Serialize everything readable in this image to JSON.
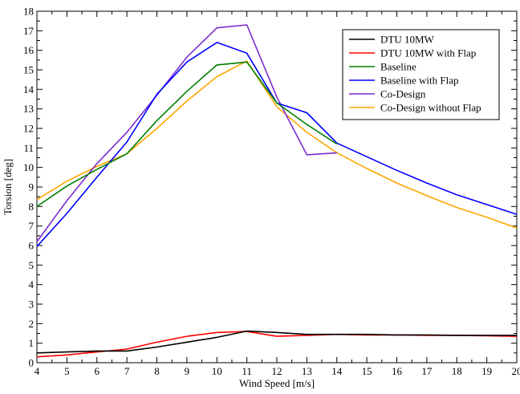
{
  "chart_data": {
    "type": "line",
    "xlabel": "Wind Speed [m/s]",
    "ylabel": "Torsion [deg]",
    "xlim": [
      4,
      20
    ],
    "ylim": [
      0,
      18
    ],
    "xticks": [
      4,
      5,
      6,
      7,
      8,
      9,
      10,
      11,
      12,
      13,
      14,
      15,
      16,
      17,
      18,
      19,
      20
    ],
    "yticks": [
      0,
      1,
      2,
      3,
      4,
      5,
      6,
      7,
      8,
      9,
      10,
      11,
      12,
      13,
      14,
      15,
      16,
      17,
      18
    ],
    "grid": false,
    "legend_position": "top-right",
    "series": [
      {
        "name": "DTU 10MW",
        "color": "#000000",
        "x": [
          4,
          5,
          6,
          7,
          8,
          9,
          10,
          11,
          12,
          13,
          14,
          15,
          16,
          17,
          18,
          19,
          20
        ],
        "y": [
          0.5,
          0.55,
          0.6,
          0.6,
          0.8,
          1.05,
          1.3,
          1.62,
          1.55,
          1.45,
          1.45,
          1.45,
          1.42,
          1.42,
          1.4,
          1.4,
          1.4
        ]
      },
      {
        "name": "DTU 10MW with Flap",
        "color": "#ff0000",
        "x": [
          4,
          5,
          6,
          7,
          8,
          9,
          10,
          11,
          12,
          13,
          14,
          15,
          16,
          17,
          18,
          19,
          20
        ],
        "y": [
          0.3,
          0.4,
          0.55,
          0.7,
          1.05,
          1.35,
          1.55,
          1.6,
          1.35,
          1.4,
          1.45,
          1.42,
          1.42,
          1.4,
          1.4,
          1.38,
          1.35
        ]
      },
      {
        "name": "Baseline",
        "color": "#008000",
        "x": [
          4,
          5,
          6,
          7,
          8,
          9,
          10,
          11,
          12,
          13,
          14
        ],
        "y": [
          8.0,
          9.05,
          9.9,
          10.7,
          12.4,
          13.9,
          15.25,
          15.4,
          13.3,
          12.2,
          11.2
        ]
      },
      {
        "name": "Baseline with Flap",
        "color": "#0000ff",
        "x": [
          4,
          5,
          6,
          7,
          8,
          9,
          10,
          11,
          12,
          13,
          14,
          15,
          16,
          17,
          18,
          19,
          20
        ],
        "y": [
          5.95,
          7.65,
          9.5,
          11.3,
          13.75,
          15.4,
          16.4,
          15.85,
          13.3,
          12.8,
          11.25,
          10.55,
          9.85,
          9.2,
          8.6,
          8.1,
          7.6
        ]
      },
      {
        "name": "Co-Design",
        "color": "#7b2ccf",
        "x": [
          4,
          5,
          6,
          7,
          8,
          9,
          10,
          11,
          12,
          13,
          14
        ],
        "y": [
          6.2,
          8.3,
          10.2,
          11.8,
          13.7,
          15.65,
          17.15,
          17.3,
          13.6,
          10.65,
          10.75
        ]
      },
      {
        "name": "Co-Design without Flap",
        "color": "#ffa500",
        "x": [
          4,
          5,
          6,
          7,
          8,
          9,
          10,
          11,
          12,
          13,
          14,
          15,
          16,
          17,
          18,
          19,
          20
        ],
        "y": [
          8.35,
          9.3,
          10.05,
          10.7,
          12.0,
          13.4,
          14.65,
          15.45,
          13.1,
          11.8,
          10.75,
          9.95,
          9.2,
          8.55,
          7.95,
          7.45,
          6.9
        ]
      }
    ]
  }
}
